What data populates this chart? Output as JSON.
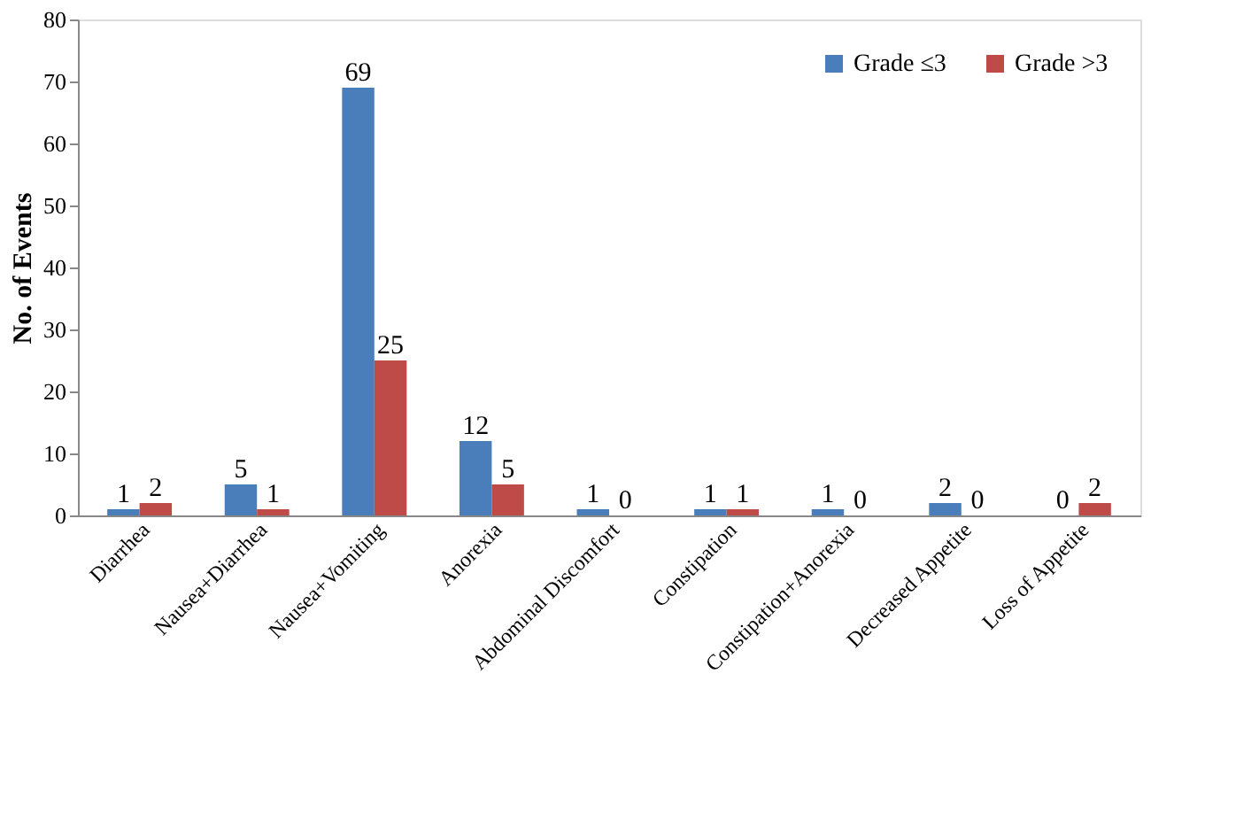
{
  "chart_data": {
    "type": "bar",
    "ylabel": "No. of Events",
    "categories": [
      "Diarrhea",
      "Nausea+Diarrhea",
      "Nausea+Vomiting",
      "Anorexia",
      "Abdominal Discomfort",
      "Constipation",
      "Constipation+Anorexia",
      "Decreased Appetite",
      "Loss of Appetite"
    ],
    "series": [
      {
        "name": "Grade ≤3",
        "color": "#4a7ebb",
        "values": [
          1,
          5,
          69,
          12,
          1,
          1,
          1,
          2,
          0
        ]
      },
      {
        "name": "Grade >3",
        "color": "#be4b48",
        "values": [
          2,
          1,
          25,
          5,
          0,
          1,
          0,
          0,
          2
        ]
      }
    ],
    "ylim": [
      0,
      80
    ],
    "yticks": [
      0,
      10,
      20,
      30,
      40,
      50,
      60,
      70,
      80
    ],
    "grid": false,
    "legend": "top right",
    "data_labels": true
  }
}
